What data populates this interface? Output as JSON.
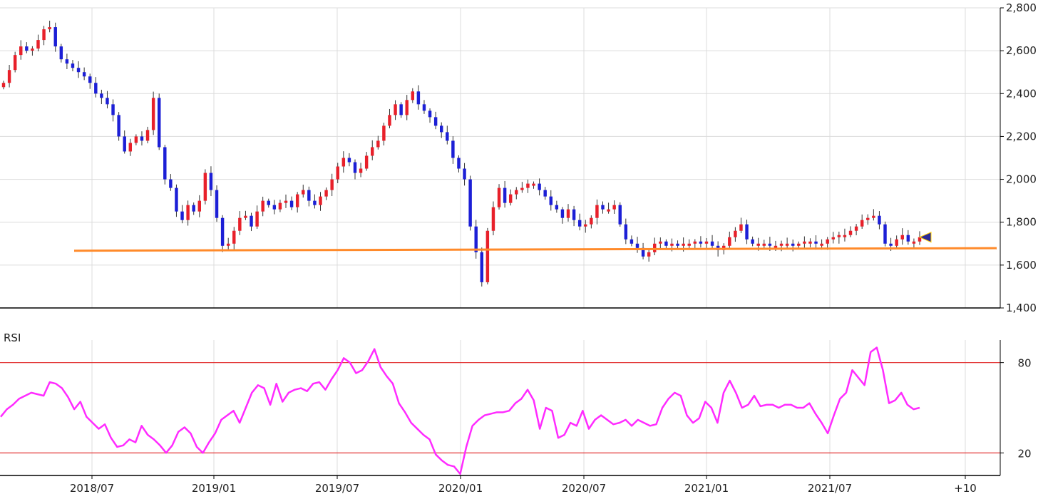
{
  "colors": {
    "up": "#e8202a",
    "down": "#1c1fd6",
    "support": "#ff8a2a",
    "rsi": "#ff2bff",
    "rsi_bands": "#e02020",
    "grid": "#dcdcdc",
    "axis": "#000000",
    "marker": "#2a2a9a"
  },
  "chart_data": [
    {
      "type": "candlestick",
      "title": "",
      "xlabel": "",
      "ylabel": "",
      "ylim": [
        1400,
        2800
      ],
      "y_ticks": [
        "1,400",
        "1,600",
        "1,800",
        "2,000",
        "2,200",
        "2,400",
        "2,600",
        "2,800"
      ],
      "y_tick_values": [
        1400,
        1600,
        1800,
        2000,
        2200,
        2400,
        2600,
        2800
      ],
      "x_ticks": [
        "2018/07",
        "2019/01",
        "2019/07",
        "2020/01",
        "2020/07",
        "2021/01",
        "2021/07",
        "+10"
      ],
      "grid": true,
      "support_line_level": 1670,
      "last_close_marker": 1730,
      "closes": [
        2450,
        2510,
        2580,
        2620,
        2600,
        2610,
        2650,
        2700,
        2710,
        2620,
        2560,
        2540,
        2520,
        2500,
        2480,
        2450,
        2400,
        2380,
        2350,
        2300,
        2200,
        2130,
        2170,
        2200,
        2180,
        2230,
        2380,
        2150,
        2000,
        1960,
        1850,
        1810,
        1880,
        1850,
        1900,
        2030,
        1950,
        1820,
        1690,
        1700,
        1760,
        1820,
        1830,
        1780,
        1850,
        1900,
        1880,
        1860,
        1890,
        1900,
        1870,
        1930,
        1950,
        1900,
        1880,
        1920,
        1950,
        2000,
        2060,
        2100,
        2080,
        2030,
        2050,
        2110,
        2150,
        2180,
        2250,
        2300,
        2350,
        2300,
        2370,
        2410,
        2350,
        2320,
        2290,
        2250,
        2220,
        2180,
        2100,
        2050,
        2000,
        1780,
        1660,
        1520,
        1760,
        1870,
        1960,
        1890,
        1930,
        1950,
        1960,
        1980,
        1980,
        1950,
        1920,
        1880,
        1860,
        1820,
        1860,
        1810,
        1780,
        1790,
        1820,
        1880,
        1860,
        1860,
        1880,
        1790,
        1720,
        1700,
        1680,
        1640,
        1660,
        1700,
        1710,
        1690,
        1700,
        1690,
        1700,
        1700,
        1710,
        1700,
        1710,
        1690,
        1670,
        1690,
        1730,
        1760,
        1790,
        1720,
        1700,
        1700,
        1700,
        1690,
        1690,
        1700,
        1700,
        1690,
        1700,
        1710,
        1710,
        1700,
        1700,
        1720,
        1730,
        1740,
        1740,
        1760,
        1780,
        1810,
        1820,
        1830,
        1790,
        1700,
        1690,
        1720,
        1740,
        1710,
        1710,
        1730
      ],
      "x_range_weeks": 190
    },
    {
      "type": "line",
      "title": "RSI",
      "ylim": [
        5,
        95
      ],
      "y_ticks": [
        "20",
        "80"
      ],
      "y_tick_values": [
        20,
        80
      ],
      "reference_levels": [
        20,
        80
      ],
      "series": [
        {
          "values": [
            44,
            49,
            52,
            56,
            58,
            60,
            59,
            58,
            67,
            66,
            63,
            57,
            49,
            54,
            44,
            40,
            36,
            39,
            30,
            24,
            25,
            29,
            27,
            38,
            32,
            29,
            25,
            20,
            25,
            34,
            37,
            33,
            24,
            20,
            27,
            33,
            42,
            45,
            48,
            40,
            50,
            60,
            65,
            63,
            52,
            66,
            54,
            60,
            62,
            63,
            61,
            66,
            67,
            62,
            69,
            75,
            83,
            80,
            73,
            75,
            81,
            89,
            77,
            71,
            66,
            53,
            47,
            40,
            36,
            32,
            29,
            19,
            15,
            12,
            11,
            6,
            24,
            38,
            42,
            45,
            46,
            47,
            47,
            48,
            53,
            56,
            62,
            55,
            36,
            50,
            48,
            30,
            32,
            40,
            38,
            48,
            36,
            42,
            45,
            42,
            39,
            40,
            42,
            38,
            42,
            40,
            38,
            39,
            50,
            56,
            60,
            58,
            45,
            40,
            43,
            54,
            50,
            40,
            60,
            68,
            60,
            50,
            52,
            58,
            51,
            52,
            52,
            50,
            52,
            52,
            50,
            50,
            53,
            46,
            40,
            33,
            45,
            56,
            60,
            75,
            70,
            65,
            87,
            90,
            75,
            53,
            55,
            60,
            52,
            49,
            50
          ]
        }
      ]
    }
  ]
}
